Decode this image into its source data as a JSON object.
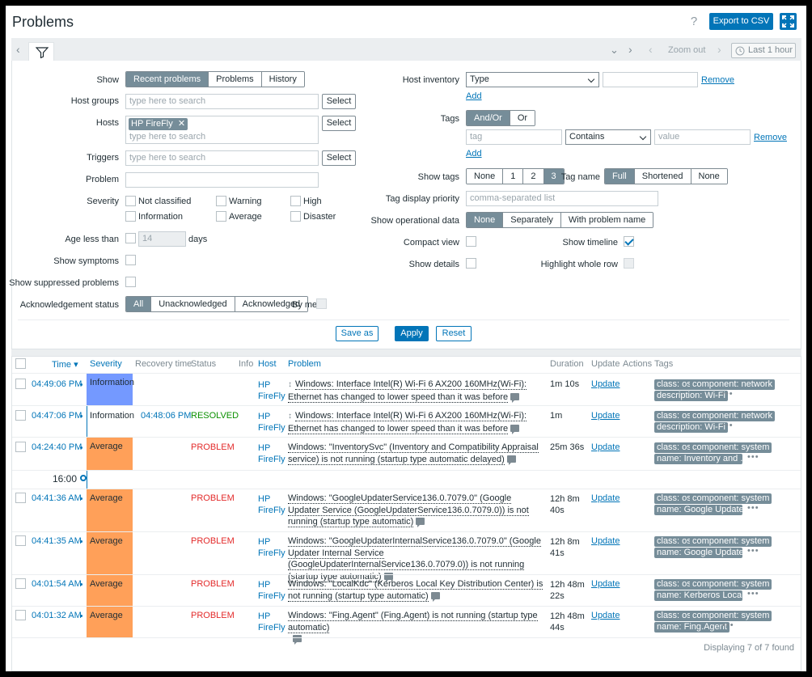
{
  "header": {
    "title": "Problems",
    "help_icon": "?",
    "export_label": "Export to CSV",
    "kiosk_icon": "fullscreen-icon"
  },
  "filter_bar": {
    "zoom_out": "Zoom out",
    "last_hour": "Last 1 hour"
  },
  "filter": {
    "show": {
      "label": "Show",
      "options": [
        "Recent problems",
        "Problems",
        "History"
      ],
      "selected": "Recent problems"
    },
    "host_groups": {
      "label": "Host groups",
      "placeholder": "type here to search",
      "select": "Select"
    },
    "hosts": {
      "label": "Hosts",
      "chip": "HP FireFly",
      "chip_remove": "✕",
      "placeholder": "type here to search",
      "select": "Select"
    },
    "triggers": {
      "label": "Triggers",
      "placeholder": "type here to search",
      "select": "Select"
    },
    "problem": {
      "label": "Problem",
      "value": ""
    },
    "severity": {
      "label": "Severity",
      "items": [
        "Not classified",
        "Warning",
        "High",
        "Information",
        "Average",
        "Disaster"
      ]
    },
    "age_less_than": {
      "label": "Age less than",
      "value": "14",
      "unit": "days"
    },
    "show_symptoms": {
      "label": "Show symptoms"
    },
    "show_suppressed": {
      "label": "Show suppressed problems"
    },
    "ack_status": {
      "label": "Acknowledgement status",
      "options": [
        "All",
        "Unacknowledged",
        "Acknowledged"
      ],
      "selected": "All",
      "by_me": "By me"
    },
    "host_inventory": {
      "label": "Host inventory",
      "field": "Type",
      "value": "",
      "remove": "Remove",
      "add": "Add"
    },
    "tags": {
      "label": "Tags",
      "options": [
        "And/Or",
        "Or"
      ],
      "selected": "And/Or",
      "tag_placeholder": "tag",
      "operator": "Contains",
      "value_placeholder": "value",
      "remove": "Remove",
      "add": "Add"
    },
    "show_tags": {
      "label": "Show tags",
      "options": [
        "None",
        "1",
        "2",
        "3"
      ],
      "selected": "3"
    },
    "tag_name": {
      "label": "Tag name",
      "options": [
        "Full",
        "Shortened",
        "None"
      ],
      "selected": "Full"
    },
    "tag_display_priority": {
      "label": "Tag display priority",
      "placeholder": "comma-separated list"
    },
    "show_operational_data": {
      "label": "Show operational data",
      "options": [
        "None",
        "Separately",
        "With problem name"
      ],
      "selected": "None"
    },
    "compact_view": {
      "label": "Compact view",
      "checked": false
    },
    "show_timeline": {
      "label": "Show timeline",
      "checked": true
    },
    "show_details": {
      "label": "Show details",
      "checked": false
    },
    "highlight_whole_row": {
      "label": "Highlight whole row",
      "checked": false
    },
    "save_as": "Save as",
    "apply": "Apply",
    "reset": "Reset"
  },
  "table": {
    "columns": [
      "Time ▾",
      "Severity",
      "Recovery time",
      "Status",
      "Info",
      "Host",
      "Problem",
      "Duration",
      "Update",
      "Actions",
      "Tags"
    ],
    "timeline_marker": "16:00",
    "rows": [
      {
        "time": "04:49:06 PM",
        "severity": "Information",
        "recovery": "",
        "status": "",
        "host1": "HP",
        "host2": "FireFly",
        "problem": "Windows: Interface Intel(R) Wi-Fi 6 AX200 160MHz(Wi-Fi): Ethernet has changed to lower speed than it was before",
        "duration": "1m 10s",
        "update": "Update",
        "tags": [
          "class: os",
          "component: network",
          "description: Wi-Fi"
        ]
      },
      {
        "time": "04:47:06 PM",
        "severity": "Information",
        "recovery": "04:48:06 PM",
        "status": "RESOLVED",
        "host1": "HP",
        "host2": "FireFly",
        "problem": "Windows: Interface Intel(R) Wi-Fi 6 AX200 160MHz(Wi-Fi): Ethernet has changed to lower speed than it was before",
        "duration": "1m",
        "update": "Update",
        "tags": [
          "class: os",
          "component: network",
          "description: Wi-Fi"
        ]
      },
      {
        "time": "04:24:40 PM",
        "severity": "Average",
        "recovery": "",
        "status": "PROBLEM",
        "host1": "HP",
        "host2": "FireFly",
        "problem": "Windows: \"InventorySvc\" (Inventory and Compatibility Appraisal service) is not running (startup type automatic delayed)",
        "duration": "25m 36s",
        "update": "Update",
        "tags": [
          "class: os",
          "component: system",
          "name: Inventory and ..."
        ]
      },
      {
        "time": "04:41:36 AM",
        "severity": "Average",
        "recovery": "",
        "status": "PROBLEM",
        "host1": "HP",
        "host2": "FireFly",
        "problem": "Windows: \"GoogleUpdaterService136.0.7079.0\" (Google Updater Service (GoogleUpdaterService136.0.7079.0)) is not running (startup type automatic)",
        "duration1": "12h 8m",
        "duration2": "40s",
        "update": "Update",
        "tags": [
          "class: os",
          "component: system",
          "name: Google Update..."
        ]
      },
      {
        "time": "04:41:35 AM",
        "severity": "Average",
        "recovery": "",
        "status": "PROBLEM",
        "host1": "HP",
        "host2": "FireFly",
        "problem": "Windows: \"GoogleUpdaterInternalService136.0.7079.0\" (Google Updater Internal Service (GoogleUpdaterInternalService136.0.7079.0)) is not running (startup type automatic)",
        "duration1": "12h 8m",
        "duration2": "41s",
        "update": "Update",
        "tags": [
          "class: os",
          "component: system",
          "name: Google Update..."
        ]
      },
      {
        "time": "04:01:54 AM",
        "severity": "Average",
        "recovery": "",
        "status": "PROBLEM",
        "host1": "HP",
        "host2": "FireFly",
        "problem": "Windows: \"LocalKdc\" (Kerberos Local Key Distribution Center) is not running (startup type automatic)",
        "duration1": "12h 48m",
        "duration2": "22s",
        "update": "Update",
        "tags": [
          "class: os",
          "component: system",
          "name: Kerberos Local ..."
        ]
      },
      {
        "time": "04:01:32 AM",
        "severity": "Average",
        "recovery": "",
        "status": "PROBLEM",
        "host1": "HP",
        "host2": "FireFly",
        "problem": "Windows: \"Fing.Agent\" (Fing.Agent) is not running (startup type automatic)",
        "duration1": "12h 48m",
        "duration2": "44s",
        "update": "Update",
        "tags": [
          "class: os",
          "component: system",
          "name: Fing.Agent"
        ]
      }
    ],
    "footer": "Displaying 7 of 7 found"
  }
}
